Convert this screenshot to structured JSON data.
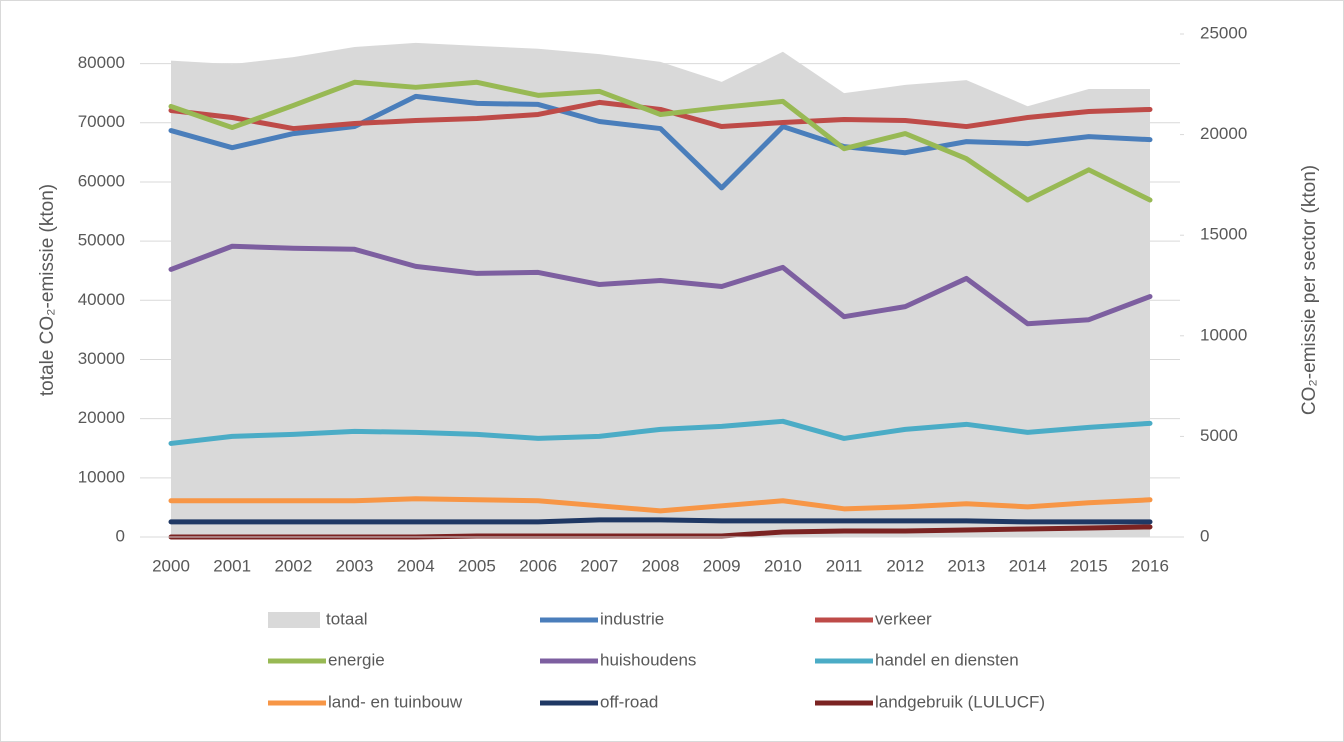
{
  "chart_data": {
    "type": "area-line",
    "categories": [
      "2000",
      "2001",
      "2002",
      "2003",
      "2004",
      "2005",
      "2006",
      "2007",
      "2008",
      "2009",
      "2010",
      "2011",
      "2012",
      "2013",
      "2014",
      "2015",
      "2016"
    ],
    "ylabel": "totale CO₂-emissie (kton)",
    "y2label": "CO₂-emissie per sector (kton)",
    "ylim": [
      0,
      85000
    ],
    "yticks": [
      0,
      10000,
      20000,
      30000,
      40000,
      50000,
      60000,
      70000,
      80000
    ],
    "y2lim": [
      0,
      25000
    ],
    "y2ticks": [
      0,
      5000,
      10000,
      15000,
      20000,
      25000
    ],
    "grid": true,
    "series": [
      {
        "name": "totaal",
        "type": "area",
        "color": "#d9d9d9",
        "values": [
          80500,
          79900,
          81100,
          82800,
          83500,
          83000,
          82500,
          81600,
          80300,
          76900,
          82000,
          75000,
          76400,
          77200,
          72800,
          75700,
          75700
        ]
      },
      {
        "name": "industrie",
        "type": "line",
        "axis": "y2",
        "color": "#4a7ebb",
        "values": [
          20200,
          19350,
          20050,
          20400,
          21900,
          21550,
          21500,
          20650,
          20300,
          17350,
          20400,
          19400,
          19100,
          19650,
          19550,
          19900,
          19750
        ]
      },
      {
        "name": "verkeer",
        "type": "line",
        "axis": "y2",
        "color": "#be4b48",
        "values": [
          21200,
          20850,
          20300,
          20550,
          20700,
          20800,
          21000,
          21600,
          21250,
          20400,
          20600,
          20750,
          20700,
          20400,
          20850,
          21150,
          21250
        ]
      },
      {
        "name": "energie",
        "type": "line",
        "axis": "y2",
        "color": "#98b954",
        "values": [
          21400,
          20350,
          21450,
          22600,
          22350,
          22600,
          21950,
          22150,
          21000,
          21350,
          21650,
          19300,
          20050,
          18800,
          16750,
          18250,
          16750
        ]
      },
      {
        "name": "huishoudens",
        "type": "line",
        "axis": "y2",
        "color": "#7d5fa0",
        "values": [
          13300,
          14450,
          14350,
          14300,
          13450,
          13100,
          13150,
          12550,
          12750,
          12450,
          13400,
          10950,
          11450,
          12850,
          10600,
          10800,
          11950
        ]
      },
      {
        "name": "handel en diensten",
        "type": "line",
        "axis": "y2",
        "color": "#4bacc6",
        "values": [
          4650,
          5000,
          5100,
          5250,
          5200,
          5100,
          4900,
          5000,
          5350,
          5500,
          5750,
          4900,
          5350,
          5600,
          5200,
          5450,
          5650
        ]
      },
      {
        "name": "land- en tuinbouw",
        "type": "line",
        "axis": "y2",
        "color": "#f79646",
        "values": [
          1800,
          1800,
          1800,
          1800,
          1900,
          1850,
          1800,
          1550,
          1300,
          1550,
          1800,
          1400,
          1500,
          1650,
          1500,
          1700,
          1850
        ]
      },
      {
        "name": "off-road",
        "type": "line",
        "axis": "y2",
        "color": "#1f3864",
        "values": [
          750,
          750,
          750,
          750,
          750,
          750,
          750,
          850,
          850,
          800,
          800,
          800,
          800,
          800,
          750,
          750,
          750
        ]
      },
      {
        "name": "landgebruik (LULUCF)",
        "type": "line",
        "axis": "y2",
        "color": "#7b2322",
        "values": [
          0,
          0,
          0,
          0,
          0,
          50,
          50,
          50,
          50,
          50,
          250,
          300,
          300,
          350,
          400,
          450,
          500
        ]
      }
    ]
  }
}
